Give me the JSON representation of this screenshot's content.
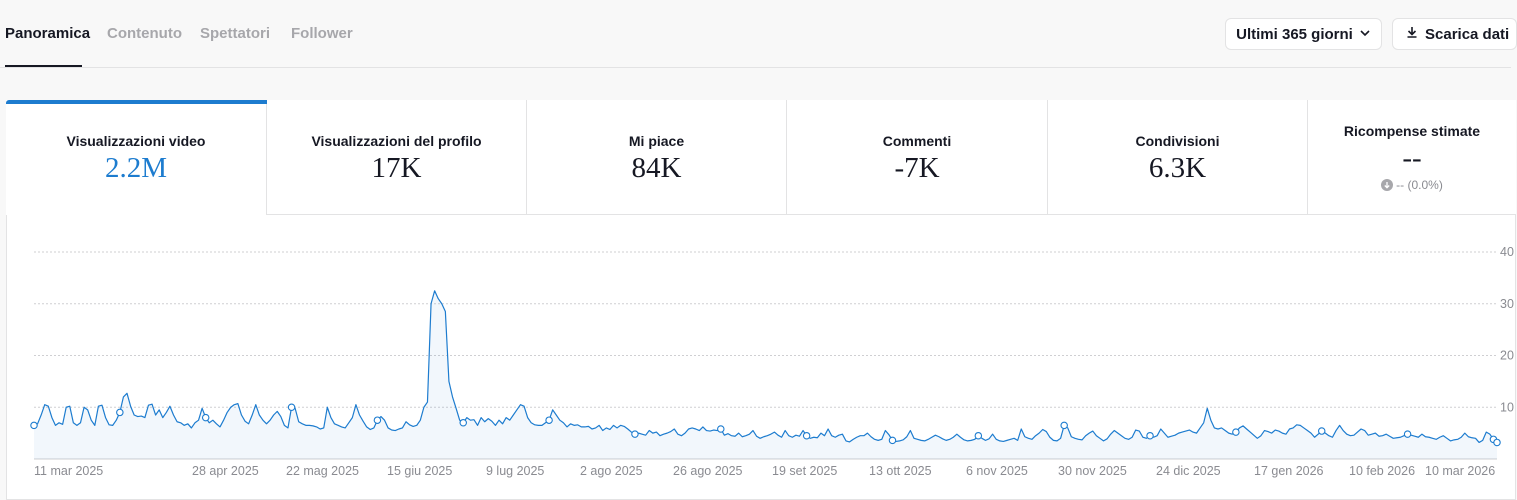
{
  "tabs": [
    {
      "label": "Panoramica",
      "active": true
    },
    {
      "label": "Contenuto",
      "active": false
    },
    {
      "label": "Spettatori",
      "active": false
    },
    {
      "label": "Follower",
      "active": false
    }
  ],
  "range_button": {
    "label": "Ultimi 365 giorni",
    "icon": "chevron-down-icon"
  },
  "download_button": {
    "label": "Scarica dati",
    "icon": "download-icon"
  },
  "accent_color": "#1d7ccf",
  "metrics": [
    {
      "label": "Visualizzazioni video",
      "value": "2.2M",
      "active": true
    },
    {
      "label": "Visualizzazioni del profilo",
      "value": "17K",
      "active": false
    },
    {
      "label": "Mi piace",
      "value": "84K",
      "active": false
    },
    {
      "label": "Commenti",
      "value": "-7K",
      "active": false
    },
    {
      "label": "Condivisioni",
      "value": "6.3K",
      "active": false
    },
    {
      "label": "Ricompense stimate",
      "value": "--",
      "sub": "-- (0.0%)",
      "sub_icon": "arrow-down-circle-icon",
      "active": false
    }
  ],
  "chart_data": {
    "type": "line",
    "series": [
      {
        "values": [
          6.5,
          6.8,
          8.5,
          10.5,
          10.2,
          8,
          6.5,
          7,
          6.7,
          10,
          10.2,
          7,
          6.5,
          7,
          10,
          9.5,
          7.5,
          6.5,
          10.2,
          10.4,
          8,
          6.6,
          6.5,
          7.5,
          9,
          12,
          12.7,
          10.2,
          8.5,
          8.2,
          8.3,
          8,
          10.4,
          10.6,
          8.5,
          9.5,
          8,
          9,
          10.2,
          8.5,
          7.2,
          7,
          6.5,
          6.8,
          6,
          7,
          7.5,
          9.8,
          8,
          7,
          7.5,
          6.8,
          6.2,
          7.5,
          9,
          10,
          10.5,
          10.7,
          8.5,
          7.3,
          6.8,
          8.5,
          10.5,
          8.5,
          7.5,
          6.8,
          7.5,
          8.5,
          9.2,
          8.2,
          6.5,
          6,
          10,
          9.8,
          7.2,
          6.8,
          6.5,
          6.5,
          6.4,
          6.2,
          5.8,
          6,
          10,
          8,
          6.8,
          6.5,
          6.2,
          6,
          7,
          8,
          10.5,
          8.5,
          7.3,
          6.2,
          5.7,
          6,
          7.5,
          8.2,
          7.5,
          6,
          5.6,
          5.5,
          5.8,
          6,
          7.2,
          6.6,
          6.3,
          6.5,
          7.5,
          10,
          11,
          30,
          32.5,
          31,
          30,
          28.5,
          15,
          12,
          9.8,
          7.5,
          7,
          8,
          7.5,
          7.6,
          6.5,
          8,
          7.2,
          7.8,
          7.3,
          6.5,
          7.5,
          6.8,
          8,
          7.5,
          8.5,
          9.5,
          10.5,
          10.2,
          8,
          7,
          6.6,
          6.5,
          6.5,
          7,
          7.5,
          9.5,
          8.5,
          7.5,
          7,
          6.2,
          6.8,
          6.5,
          6.6,
          6.2,
          6.2,
          6.3,
          5.8,
          6,
          6.5,
          5.5,
          6,
          5.7,
          6.5,
          6,
          6.5,
          6.3,
          5.8,
          5.2,
          4.8,
          5,
          4.8,
          4.6,
          5.5,
          5,
          5.2,
          4.5,
          4.8,
          5,
          5.3,
          5.8,
          4.8,
          4.5,
          5,
          5.8,
          6,
          5.8,
          5.5,
          6.2,
          5.5,
          5.4,
          5.6,
          5.5,
          5.8,
          4.6,
          4.9,
          4.5,
          4.4,
          5,
          4.3,
          4.5,
          4.8,
          5.5,
          4.4,
          4,
          4.3,
          4.5,
          4.8,
          5.2,
          4.6,
          4.2,
          5.5,
          4.5,
          4.2,
          4.6,
          4.4,
          5.5,
          4.5,
          4,
          4.2,
          4.1,
          5,
          4.5,
          5.8,
          4.5,
          4.2,
          4.6,
          4.8,
          3.5,
          3.3,
          3.8,
          4.2,
          4.5,
          4.5,
          5,
          4.3,
          3.8,
          3.6,
          3.8,
          5.5,
          4.7,
          3.6,
          3.4,
          3.5,
          3.7,
          4.3,
          5.5,
          4,
          3.8,
          3.6,
          3.5,
          3.8,
          4.2,
          4.6,
          4.3,
          3.9,
          3.6,
          3.8,
          4.2,
          4.8,
          4.2,
          3.7,
          3.5,
          3.6,
          3.8,
          4.5,
          4,
          3.6,
          3.9,
          4.8,
          3.8,
          3.5,
          3.4,
          3.6,
          3.8,
          4,
          3.6,
          5.8,
          4.3,
          4,
          3.8,
          4.5,
          5,
          5.7,
          5.3,
          4.2,
          3.6,
          3.5,
          4,
          6.5,
          6,
          4.3,
          4,
          3.8,
          3.7,
          4.5,
          5,
          5.4,
          4.5,
          4,
          3.5,
          3.9,
          4.8,
          5.5,
          5,
          4.5,
          4,
          3.8,
          4.2,
          5.6,
          5.4,
          4.2,
          4,
          4.5,
          4.2,
          4.5,
          5.8,
          5,
          4.2,
          4.4,
          4.6,
          5,
          5.2,
          5.4,
          5.6,
          5.2,
          5,
          6,
          7,
          9.8,
          7.5,
          6,
          5.8,
          6,
          5.5,
          5,
          4.8,
          5.2,
          6,
          6.4,
          5.8,
          5.2,
          4.6,
          4,
          4.5,
          5.5,
          5.3,
          5,
          5.6,
          5.4,
          5,
          4.8,
          5.8,
          6,
          6.6,
          6.5,
          6,
          5.5,
          5,
          4.2,
          4.8,
          5.4,
          5,
          4.5,
          4.2,
          5.5,
          6.5,
          5.5,
          4.8,
          4.5,
          4.6,
          5.2,
          5.8,
          5.5,
          4.6,
          4.8,
          5,
          4.4,
          4.5,
          4.8,
          4.4,
          4,
          4.1,
          4.2,
          4.5,
          4.8,
          4.6,
          4.4,
          4.2,
          4.8,
          4.3,
          4.2,
          4,
          3.8,
          4.2,
          4.5,
          4,
          3.5,
          3.7,
          3.8,
          4.2,
          5,
          4.3,
          4.1,
          4,
          3.2,
          3.6,
          5.2,
          4.8,
          3.8,
          3.2
        ]
      }
    ],
    "x_tick_labels": [
      "11 mar 2025",
      "28 apr 2025",
      "22 mag 2025",
      "15 giu 2025",
      "9 lug 2025",
      "2 ago 2025",
      "26 ago 2025",
      "19 set 2025",
      "13 ott 2025",
      "6 nov 2025",
      "30 nov 2025",
      "24 dic 2025",
      "17 gen 2026",
      "10 feb 2026",
      "10 mar 2026"
    ],
    "y_tick_labels": [
      "40",
      "30",
      "20",
      "10"
    ],
    "y_ticks": [
      40,
      30,
      20,
      10
    ],
    "ylim": [
      0,
      40
    ],
    "grid": true,
    "fill": true
  }
}
